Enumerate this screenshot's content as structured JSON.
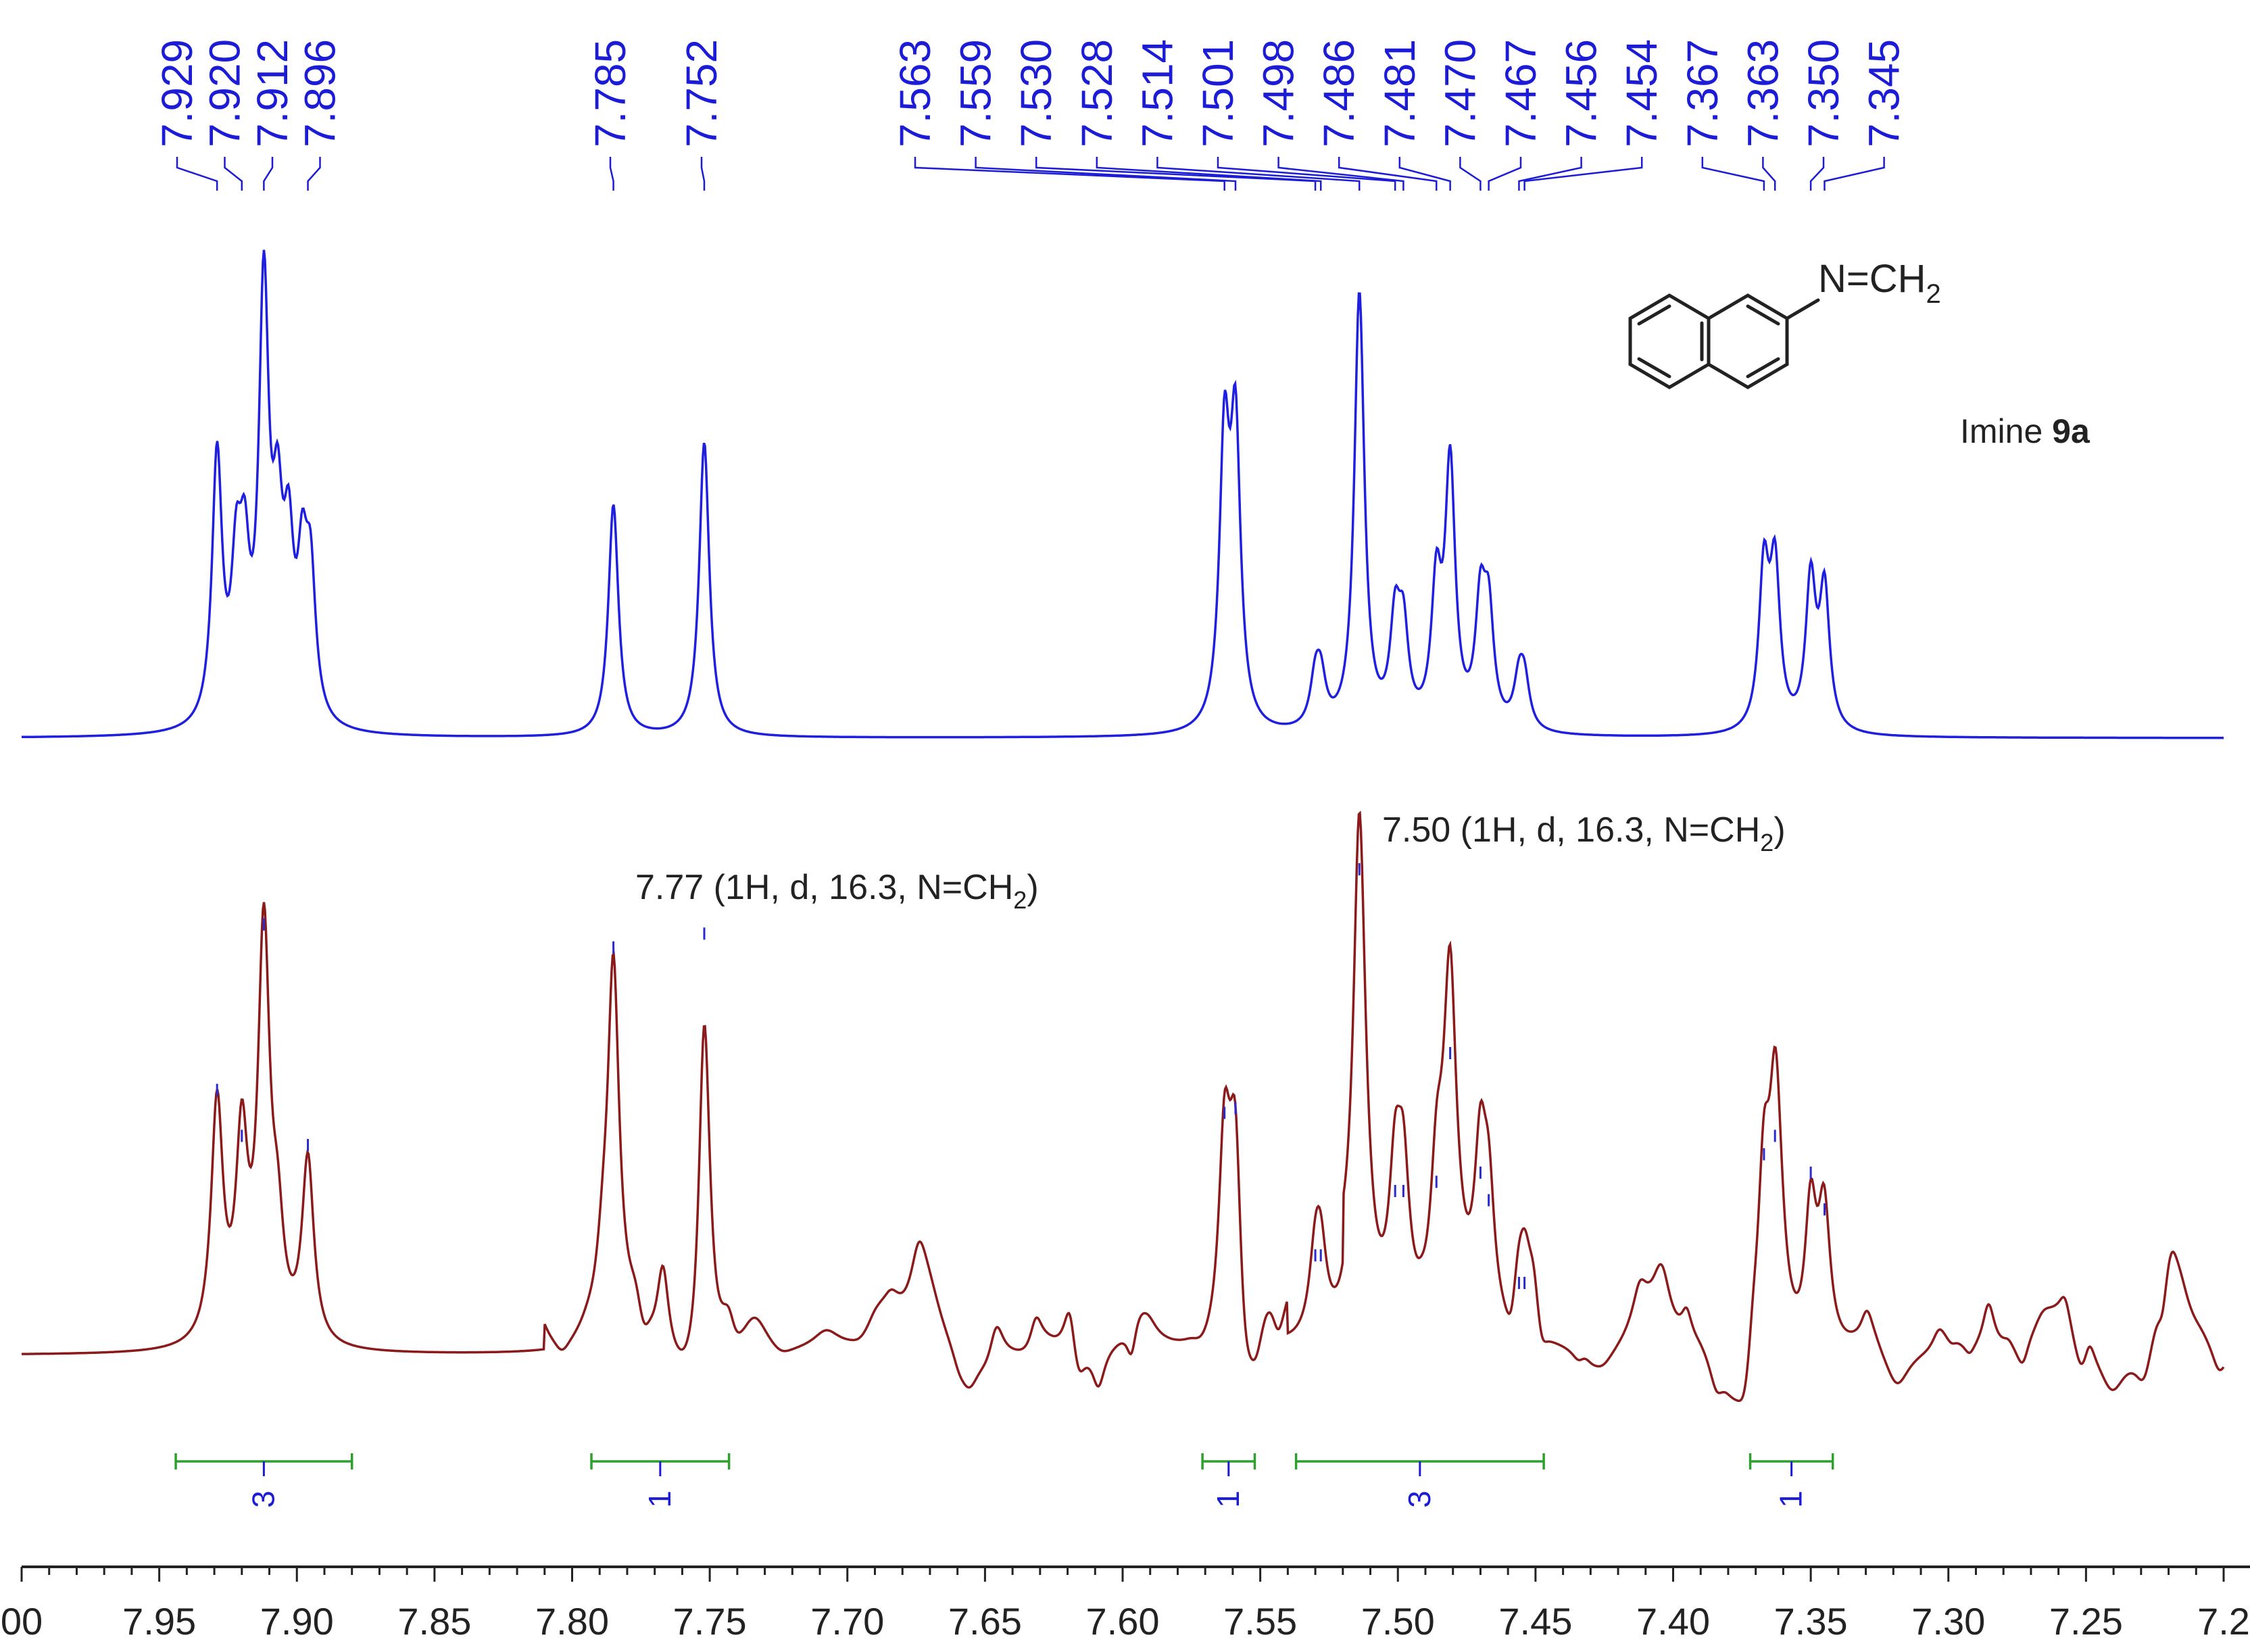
{
  "chart_data": {
    "type": "line",
    "x_unit": "ppm",
    "xlim": [
      8.0,
      7.2
    ],
    "x_axis": {
      "reversed": true,
      "major_ticks": [
        8.0,
        7.95,
        7.9,
        7.85,
        7.8,
        7.75,
        7.7,
        7.65,
        7.6,
        7.55,
        7.5,
        7.45,
        7.4,
        7.35,
        7.3,
        7.25,
        7.2
      ],
      "tick_labels": [
        "00",
        "7.95",
        "7.90",
        "7.85",
        "7.80",
        "7.75",
        "7.70",
        "7.65",
        "7.60",
        "7.55",
        "7.50",
        "7.45",
        "7.40",
        "7.35",
        "7.30",
        "7.25",
        "7.2"
      ]
    },
    "peak_labels": [
      "7.929",
      "7.920",
      "7.912",
      "7.896",
      "7.785",
      "7.752",
      "7.563",
      "7.559",
      "7.530",
      "7.528",
      "7.514",
      "7.501",
      "7.498",
      "7.486",
      "7.481",
      "7.470",
      "7.467",
      "7.456",
      "7.454",
      "7.367",
      "7.363",
      "7.350",
      "7.345"
    ],
    "series": [
      {
        "color": "#1f1fe0",
        "peaks": [
          {
            "ppm": 7.929,
            "h": 0.6
          },
          {
            "ppm": 7.922,
            "h": 0.3
          },
          {
            "ppm": 7.919,
            "h": 0.3
          },
          {
            "ppm": 7.912,
            "h": 0.95
          },
          {
            "ppm": 7.907,
            "h": 0.38
          },
          {
            "ppm": 7.903,
            "h": 0.34
          },
          {
            "ppm": 7.898,
            "h": 0.3
          },
          {
            "ppm": 7.895,
            "h": 0.3
          },
          {
            "ppm": 7.785,
            "h": 0.52
          },
          {
            "ppm": 7.752,
            "h": 0.66
          },
          {
            "ppm": 7.563,
            "h": 0.62
          },
          {
            "ppm": 7.559,
            "h": 0.64
          },
          {
            "ppm": 7.53,
            "h": 0.1
          },
          {
            "ppm": 7.528,
            "h": 0.1
          },
          {
            "ppm": 7.514,
            "h": 0.98
          },
          {
            "ppm": 7.501,
            "h": 0.22
          },
          {
            "ppm": 7.498,
            "h": 0.2
          },
          {
            "ppm": 7.486,
            "h": 0.3
          },
          {
            "ppm": 7.481,
            "h": 0.58
          },
          {
            "ppm": 7.47,
            "h": 0.26
          },
          {
            "ppm": 7.467,
            "h": 0.24
          },
          {
            "ppm": 7.456,
            "h": 0.1
          },
          {
            "ppm": 7.454,
            "h": 0.1
          },
          {
            "ppm": 7.367,
            "h": 0.35
          },
          {
            "ppm": 7.363,
            "h": 0.35
          },
          {
            "ppm": 7.35,
            "h": 0.33
          },
          {
            "ppm": 7.345,
            "h": 0.31
          }
        ],
        "linewidth_ppm": 0.0022
      },
      {
        "color": "#8b1a1a",
        "peaks": [
          {
            "ppm": 7.929,
            "h": 0.52
          },
          {
            "ppm": 7.92,
            "h": 0.42
          },
          {
            "ppm": 7.912,
            "h": 0.88
          },
          {
            "ppm": 7.907,
            "h": 0.2
          },
          {
            "ppm": 7.896,
            "h": 0.4
          },
          {
            "ppm": 7.785,
            "h": 0.83
          },
          {
            "ppm": 7.767,
            "h": 0.2
          },
          {
            "ppm": 7.752,
            "h": 0.86
          },
          {
            "ppm": 7.563,
            "h": 0.47
          },
          {
            "ppm": 7.559,
            "h": 0.48
          },
          {
            "ppm": 7.53,
            "h": 0.16
          },
          {
            "ppm": 7.528,
            "h": 0.16
          },
          {
            "ppm": 7.514,
            "h": 1.0
          },
          {
            "ppm": 7.501,
            "h": 0.3
          },
          {
            "ppm": 7.498,
            "h": 0.3
          },
          {
            "ppm": 7.486,
            "h": 0.32
          },
          {
            "ppm": 7.481,
            "h": 0.6
          },
          {
            "ppm": 7.47,
            "h": 0.34
          },
          {
            "ppm": 7.467,
            "h": 0.28
          },
          {
            "ppm": 7.456,
            "h": 0.1
          },
          {
            "ppm": 7.454,
            "h": 0.1
          },
          {
            "ppm": 7.367,
            "h": 0.38
          },
          {
            "ppm": 7.363,
            "h": 0.42
          },
          {
            "ppm": 7.35,
            "h": 0.34
          },
          {
            "ppm": 7.345,
            "h": 0.26
          }
        ],
        "peak_pick_marks": [
          7.929,
          7.92,
          7.912,
          7.896,
          7.785,
          7.752,
          7.563,
          7.559,
          7.53,
          7.528,
          7.514,
          7.501,
          7.498,
          7.486,
          7.481,
          7.47,
          7.467,
          7.456,
          7.454,
          7.367,
          7.363,
          7.35,
          7.345
        ],
        "linewidth_ppm": 0.0026,
        "noise_ppm_ranges": [
          [
            7.81,
            7.54
          ],
          [
            7.52,
            7.2
          ]
        ]
      }
    ],
    "integrals": [
      {
        "from": 7.944,
        "to": 7.88,
        "value": "3"
      },
      {
        "from": 7.793,
        "to": 7.743,
        "value": "1"
      },
      {
        "from": 7.571,
        "to": 7.552,
        "value": "1"
      },
      {
        "from": 7.537,
        "to": 7.447,
        "value": "3"
      },
      {
        "from": 7.372,
        "to": 7.342,
        "value": "1"
      }
    ],
    "annotations": [
      {
        "text": "7.77 (1H, d, 16.3, N=CH",
        "sub": "2",
        "close": ")",
        "ppm": 7.77
      },
      {
        "text": "7.50 (1H, d, 16.3, N=CH",
        "sub": "2",
        "close": ")",
        "ppm": 7.5
      }
    ],
    "structure": {
      "group_text": "N=CH",
      "group_sub": "2",
      "compound_prefix": "Imine ",
      "compound_id": "9a"
    }
  }
}
